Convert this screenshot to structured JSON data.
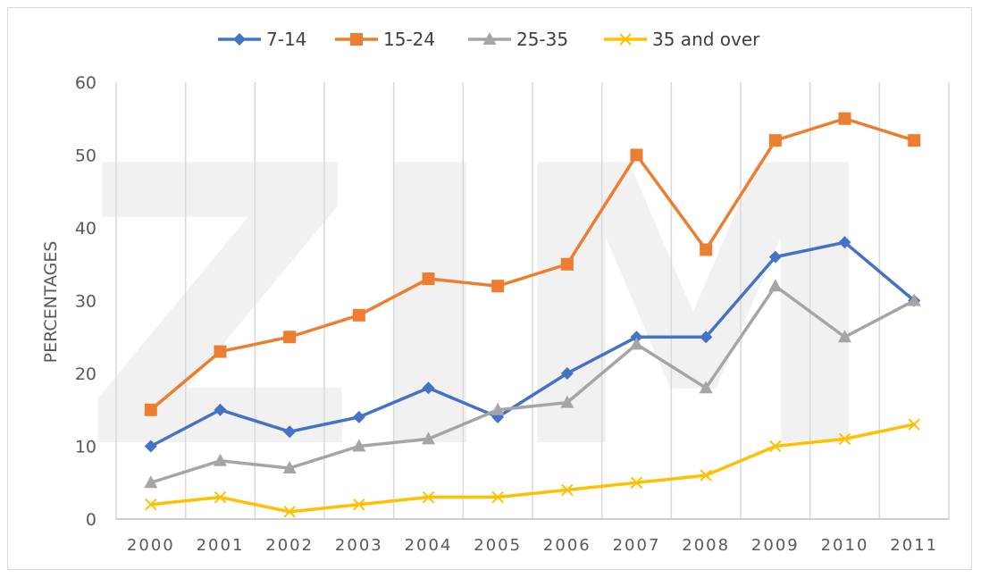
{
  "chart_data": {
    "type": "line",
    "title": "",
    "xlabel": "",
    "ylabel": "PERCENTAGES",
    "categories": [
      "2000",
      "2001",
      "2002",
      "2003",
      "2004",
      "2005",
      "2006",
      "2007",
      "2008",
      "2009",
      "2010",
      "2011"
    ],
    "ylim": [
      0,
      60
    ],
    "yticks": [
      0,
      10,
      20,
      30,
      40,
      50,
      60
    ],
    "grid": "vertical",
    "legend": "top",
    "watermark": "ZIM",
    "series": [
      {
        "name": "7-14",
        "color": "#4472C4",
        "marker": "diamond",
        "values": [
          10,
          15,
          12,
          14,
          18,
          14,
          20,
          25,
          25,
          36,
          38,
          30
        ]
      },
      {
        "name": "15-24",
        "color": "#ED7D31",
        "marker": "square",
        "values": [
          15,
          23,
          25,
          28,
          33,
          32,
          35,
          50,
          37,
          52,
          55,
          52
        ]
      },
      {
        "name": "25-35",
        "color": "#A5A5A5",
        "marker": "triangle",
        "values": [
          5,
          8,
          7,
          10,
          11,
          15,
          16,
          24,
          18,
          32,
          25,
          30
        ]
      },
      {
        "name": "35 and over",
        "color": "#FFC000",
        "marker": "x",
        "values": [
          2,
          3,
          1,
          2,
          3,
          3,
          4,
          5,
          6,
          10,
          11,
          13
        ]
      }
    ]
  }
}
